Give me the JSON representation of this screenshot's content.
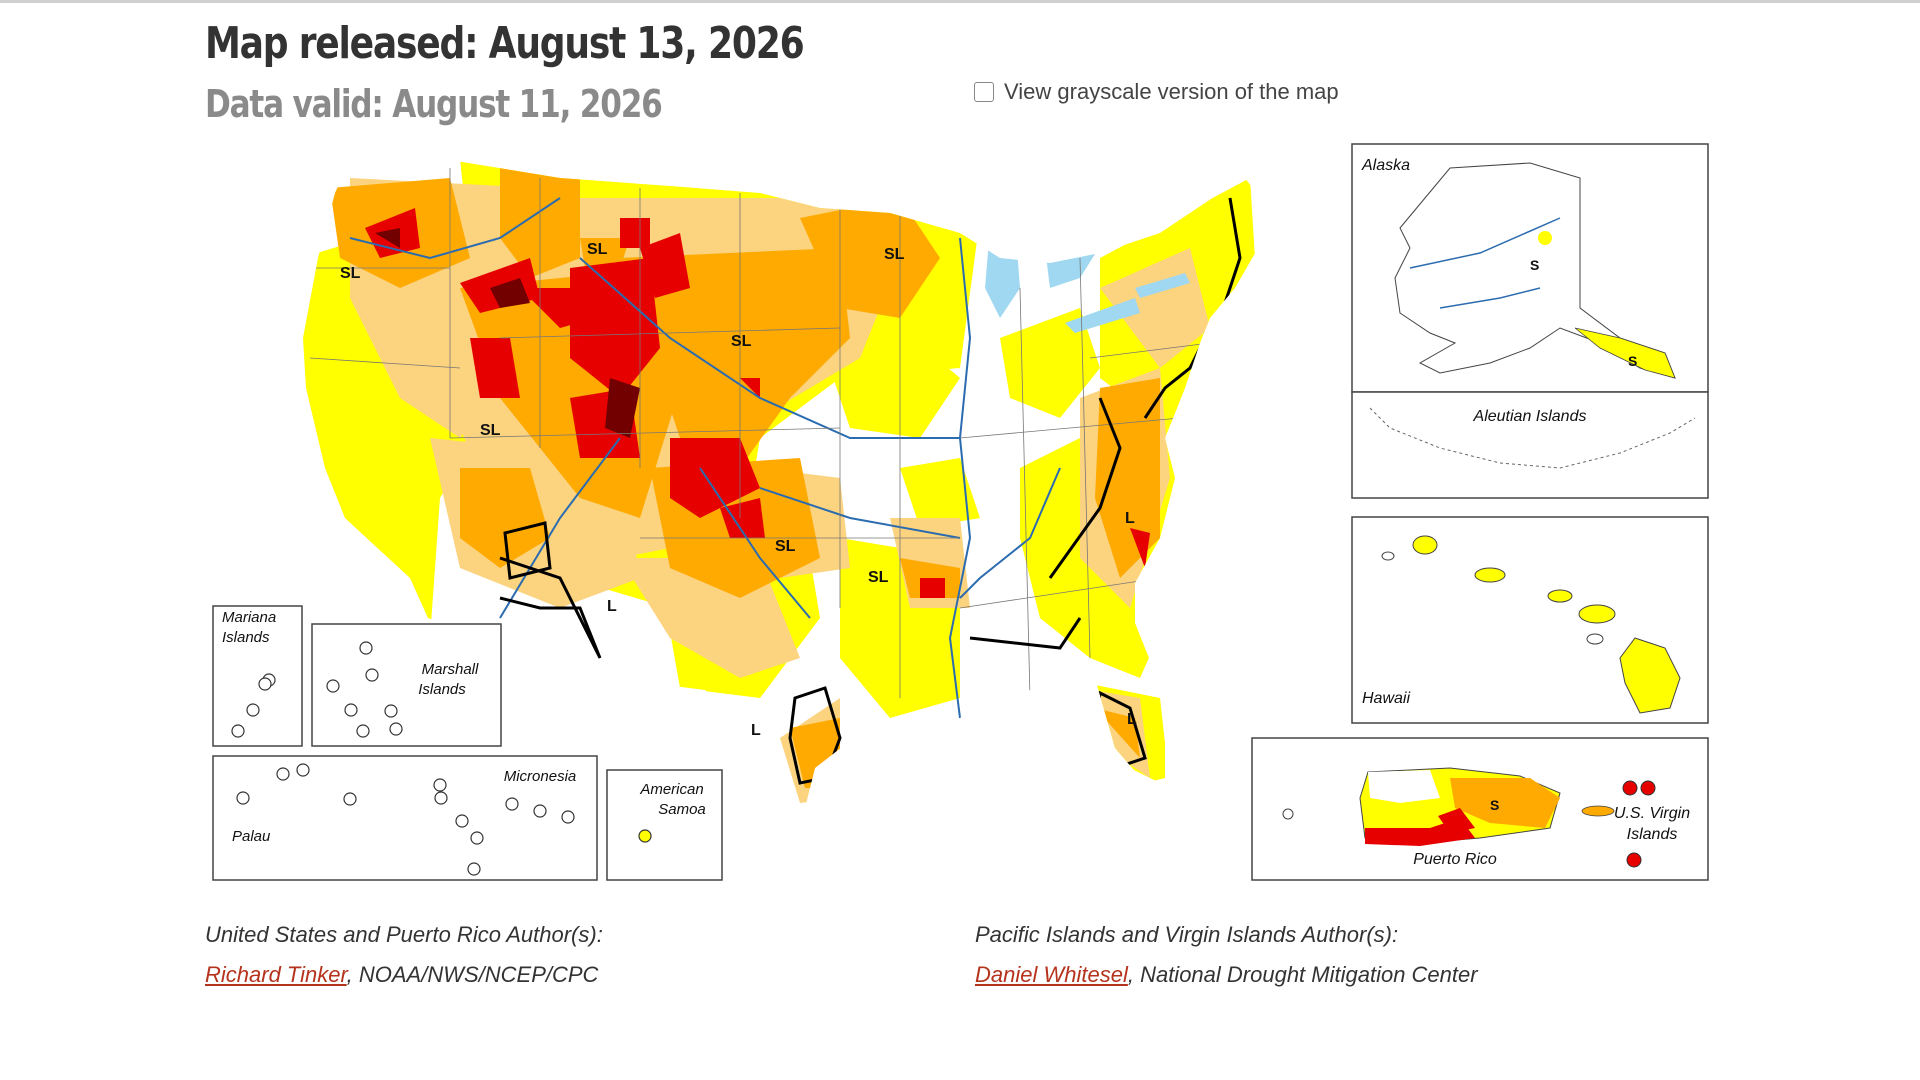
{
  "header": {
    "released": "Map released: August 13, 2026",
    "valid": "Data valid: August 11, 2026",
    "grayscale_label": "View grayscale version of the map"
  },
  "map": {
    "region_labels": {
      "alaska": "Alaska",
      "aleutian": "Aleutian Islands",
      "hawaii": "Hawaii",
      "mariana": [
        "Mariana",
        "Islands"
      ],
      "marshall": [
        "Marshall",
        "Islands"
      ],
      "micronesia": "Micronesia",
      "palau": "Palau",
      "samoa": [
        "American",
        "Samoa"
      ],
      "puerto_rico": "Puerto Rico",
      "virgin": [
        "U.S. Virgin",
        "Islands"
      ]
    },
    "impact_labels": {
      "sl": "SL",
      "l": "L",
      "s": "S"
    },
    "colors": {
      "D0": "#ffff00",
      "D1": "#fcd37f",
      "D2": "#ffaa00",
      "D3": "#e60000",
      "D4": "#730000",
      "water": "#9fd8f0",
      "river": "#2b6cb0"
    }
  },
  "authors": {
    "us_heading": "United States and Puerto Rico Author(s):",
    "us_name": "Richard Tinker",
    "us_org": ", NOAA/NWS/NCEP/CPC",
    "pacific_heading": "Pacific Islands and Virgin Islands Author(s):",
    "pacific_name": "Daniel Whitesel",
    "pacific_org": ", National Drought Mitigation Center"
  }
}
